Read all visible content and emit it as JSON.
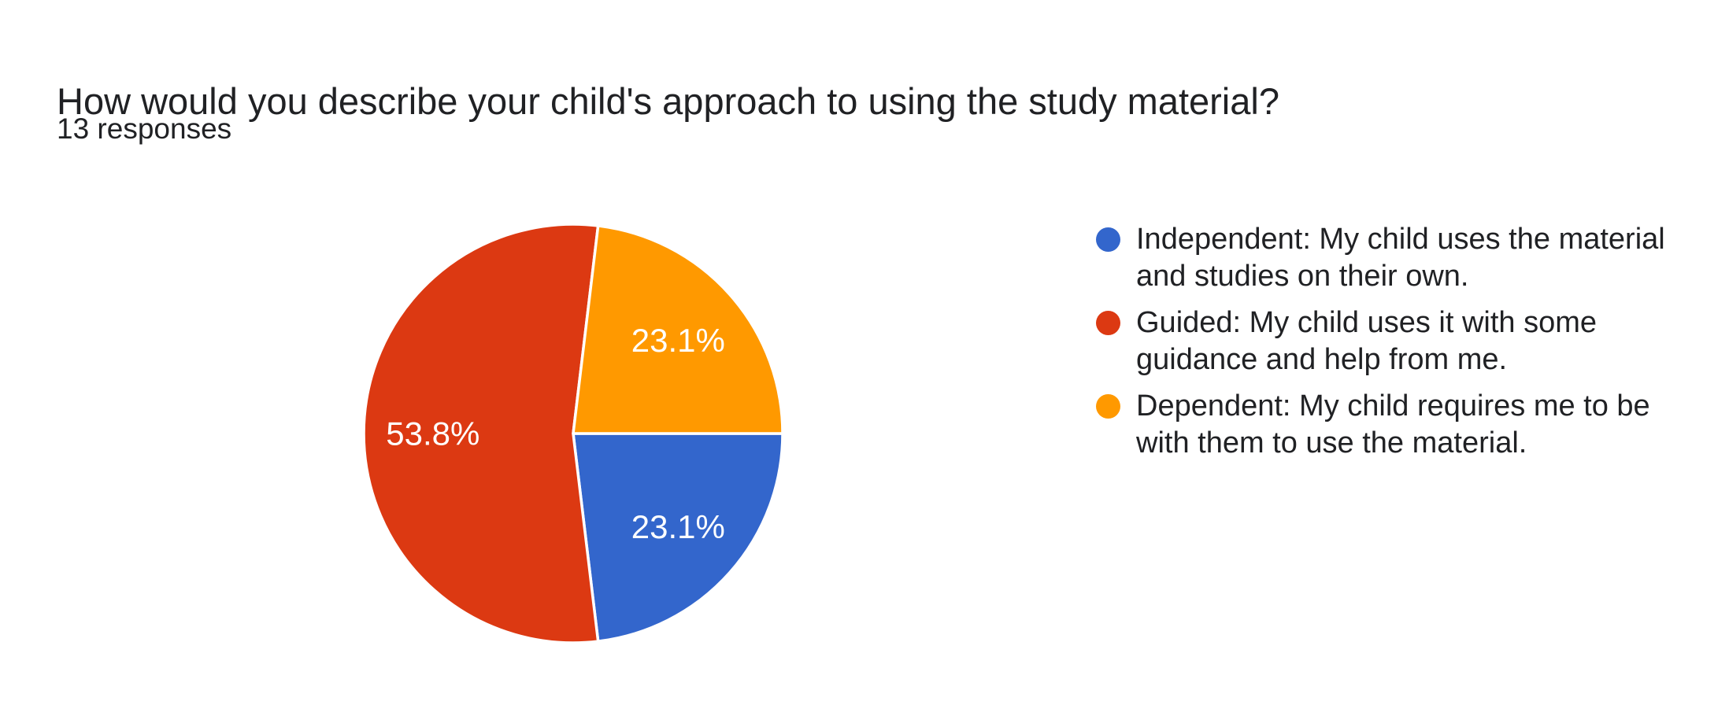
{
  "header": {
    "title": "How would you describe your child's approach to using the study material?",
    "responses": "13 responses"
  },
  "chart_data": {
    "type": "pie",
    "title": "How would you describe your child's approach to using the study material?",
    "subtitle": "13 responses",
    "legend_position": "right",
    "start_angle_deg_clockwise_from_north": 90,
    "direction": "clockwise",
    "label_color": "#ffffff",
    "background": "#ffffff",
    "slices": [
      {
        "label": "Independent: My child uses the material and studies on their own.",
        "pct": 23.1,
        "pct_label": "23.1%",
        "color": "#3366CC"
      },
      {
        "label": "Guided: My child uses it with some guidance and help from me.",
        "pct": 53.8,
        "pct_label": "53.8%",
        "color": "#DC3912"
      },
      {
        "label": "Dependent: My child requires me to be with them to use the material.",
        "pct": 23.1,
        "pct_label": "23.1%",
        "color": "#FF9900"
      }
    ]
  }
}
